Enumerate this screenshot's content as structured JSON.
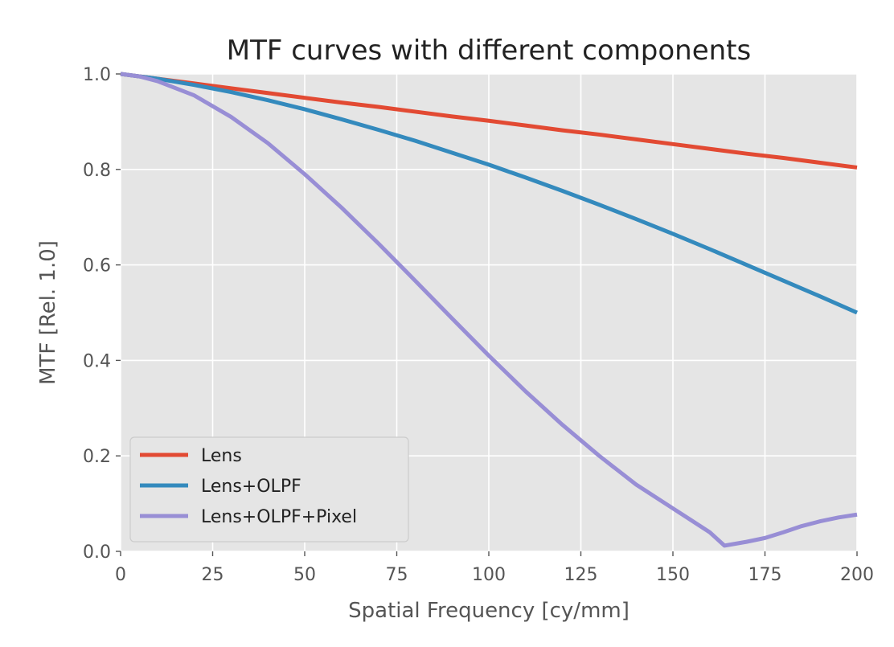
{
  "chart_data": {
    "type": "line",
    "title": "MTF curves with different components",
    "xlabel": "Spatial Frequency [cy/mm]",
    "ylabel": "MTF [Rel. 1.0]",
    "xlim": [
      0,
      200
    ],
    "ylim": [
      0,
      1.0
    ],
    "xticks": [
      0,
      25,
      50,
      75,
      100,
      125,
      150,
      175,
      200
    ],
    "yticks": [
      0.0,
      0.2,
      0.4,
      0.6,
      0.8,
      1.0
    ],
    "xtick_labels": [
      "0",
      "25",
      "50",
      "75",
      "100",
      "125",
      "150",
      "175",
      "200"
    ],
    "ytick_labels": [
      "0.0",
      "0.2",
      "0.4",
      "0.6",
      "0.8",
      "1.0"
    ],
    "grid": true,
    "legend_position": "lower-left",
    "series": [
      {
        "name": "Lens",
        "color": "#E24A33",
        "x": [
          0,
          10,
          20,
          30,
          40,
          50,
          60,
          70,
          80,
          90,
          100,
          110,
          120,
          130,
          140,
          150,
          160,
          170,
          180,
          190,
          200
        ],
        "y": [
          1.0,
          0.99,
          0.98,
          0.97,
          0.96,
          0.95,
          0.94,
          0.931,
          0.921,
          0.911,
          0.902,
          0.892,
          0.882,
          0.873,
          0.863,
          0.853,
          0.843,
          0.833,
          0.824,
          0.814,
          0.804
        ]
      },
      {
        "name": "Lens+OLPF",
        "color": "#348ABD",
        "x": [
          0,
          10,
          20,
          30,
          40,
          50,
          60,
          70,
          80,
          90,
          100,
          110,
          120,
          130,
          140,
          150,
          160,
          170,
          180,
          190,
          200
        ],
        "y": [
          1.0,
          0.99,
          0.977,
          0.962,
          0.945,
          0.926,
          0.905,
          0.883,
          0.86,
          0.835,
          0.81,
          0.783,
          0.755,
          0.726,
          0.696,
          0.665,
          0.633,
          0.6,
          0.567,
          0.534,
          0.5
        ]
      },
      {
        "name": "Lens+OLPF+Pixel",
        "color": "#988ED5",
        "x": [
          0,
          5,
          10,
          20,
          30,
          40,
          50,
          60,
          70,
          80,
          90,
          100,
          110,
          120,
          130,
          140,
          150,
          155,
          160,
          164,
          170,
          175,
          180,
          185,
          190,
          195,
          200
        ],
        "y": [
          1.0,
          0.995,
          0.985,
          0.955,
          0.91,
          0.855,
          0.79,
          0.72,
          0.645,
          0.567,
          0.488,
          0.41,
          0.335,
          0.265,
          0.2,
          0.14,
          0.09,
          0.065,
          0.04,
          0.012,
          0.02,
          0.028,
          0.04,
          0.053,
          0.063,
          0.071,
          0.077
        ]
      }
    ]
  }
}
